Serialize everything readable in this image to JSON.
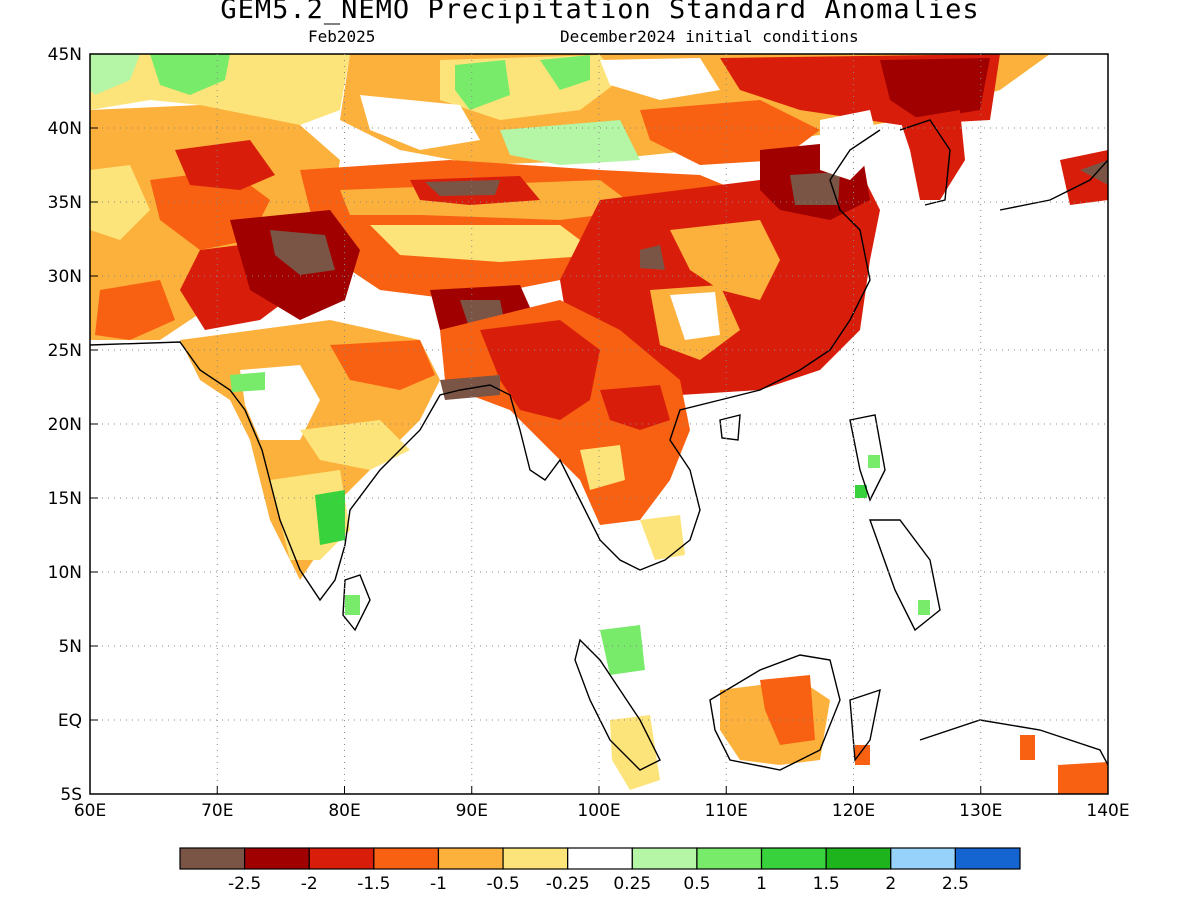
{
  "title": "GEM5.2_NEMO Precipitation Standard Anomalies",
  "valid_month": "Feb2025",
  "init_conditions": "December2024 initial conditions",
  "map": {
    "lon_range": [
      60,
      140
    ],
    "lat_range": [
      -5,
      45
    ],
    "x_tick_labels": [
      "60E",
      "70E",
      "80E",
      "90E",
      "100E",
      "110E",
      "120E",
      "130E",
      "140E"
    ],
    "y_tick_labels": [
      "45N",
      "40N",
      "35N",
      "30N",
      "25N",
      "20N",
      "15N",
      "10N",
      "5N",
      "EQ",
      "5S"
    ]
  },
  "colorbar": {
    "colors": [
      "#7a5545",
      "#a00000",
      "#d81e0a",
      "#f86012",
      "#fbb13b",
      "#fde47a",
      "#ffffff",
      "#b4f5a6",
      "#78ec6a",
      "#37d23c",
      "#1eb41e",
      "#96d2fa",
      "#1464d2"
    ],
    "labels": [
      "-2.5",
      "-2",
      "-1.5",
      "-1",
      "-0.5",
      "-0.25",
      "0.25",
      "0.5",
      "1",
      "1.5",
      "2",
      "2.5"
    ]
  }
}
